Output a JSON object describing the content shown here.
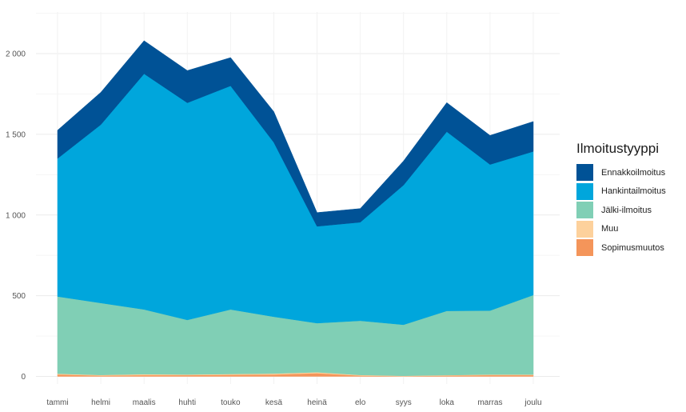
{
  "chart_data": {
    "type": "area",
    "stacked": true,
    "title": "",
    "xlabel": "",
    "ylabel": "",
    "ylim": [
      0,
      2250
    ],
    "y_ticks": [
      0,
      500,
      1000,
      1500,
      2000
    ],
    "y_tick_labels": [
      "0",
      "500",
      "1 000",
      "1 500",
      "2 000"
    ],
    "categories": [
      "tammi",
      "helmi",
      "maalis",
      "huhti",
      "touko",
      "kesä",
      "heinä",
      "elo",
      "syys",
      "loka",
      "marras",
      "joulu"
    ],
    "legend_title": "Ilmoitustyyppi",
    "legend_position": "right",
    "grid": true,
    "series": [
      {
        "name": "Sopimusmuutos",
        "color": "#f4955a",
        "values": [
          12,
          5,
          8,
          8,
          10,
          12,
          20,
          5,
          2,
          5,
          8,
          8
        ]
      },
      {
        "name": "Muu",
        "color": "#fdd19c",
        "values": [
          5,
          4,
          6,
          4,
          5,
          6,
          6,
          4,
          2,
          3,
          4,
          4
        ]
      },
      {
        "name": "Jälki-ilmoitus",
        "color": "#80cfb5",
        "values": [
          478,
          446,
          401,
          338,
          400,
          352,
          304,
          336,
          316,
          398,
          396,
          492
        ]
      },
      {
        "name": "Hankintailmoitus",
        "color": "#00a6dc",
        "values": [
          855,
          1105,
          1460,
          1345,
          1385,
          1080,
          600,
          610,
          865,
          1110,
          905,
          890
        ]
      },
      {
        "name": "Ennakkoilmoitus",
        "color": "#005296",
        "values": [
          175,
          200,
          205,
          200,
          175,
          190,
          85,
          85,
          150,
          180,
          180,
          185
        ]
      }
    ]
  }
}
